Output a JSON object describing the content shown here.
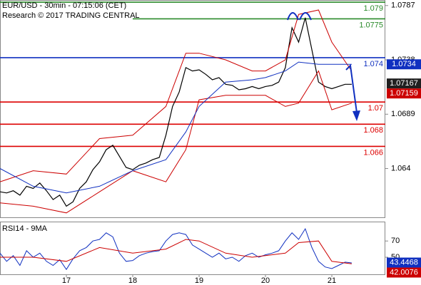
{
  "chart_data": [
    {
      "type": "line",
      "title": "EUR/USD - 30min - 07:15:06 (CET)",
      "subtitle": "Research © 2017 TRADING CENTRAL",
      "xlim": [
        16,
        21.806
      ],
      "ylim": [
        1.0596,
        1.0792
      ],
      "yticks": [
        1.0787,
        1.0738,
        1.0689,
        1.064
      ],
      "series": [
        {
          "color": "#000000",
          "width": 1.2,
          "x": [
            16.0,
            16.1,
            16.2,
            16.3,
            16.4,
            16.5,
            16.6,
            16.7,
            16.8,
            16.9,
            17.0,
            17.1,
            17.2,
            17.3,
            17.4,
            17.5,
            17.6,
            17.7,
            17.8,
            17.9,
            18.0,
            18.1,
            18.2,
            18.3,
            18.4,
            18.5,
            18.6,
            18.7,
            18.8,
            18.9,
            19.0,
            19.1,
            19.2,
            19.3,
            19.4,
            19.5,
            19.6,
            19.7,
            19.8,
            19.9,
            20.0,
            20.1,
            20.2,
            20.3,
            20.4,
            20.5,
            20.6,
            20.7,
            20.8,
            20.9,
            21.0,
            21.1,
            21.2,
            21.3
          ],
          "values": [
            1.0619,
            1.0618,
            1.062,
            1.0616,
            1.0624,
            1.0622,
            1.0627,
            1.062,
            1.0612,
            1.0616,
            1.0606,
            1.061,
            1.0622,
            1.0628,
            1.0639,
            1.0646,
            1.0657,
            1.0661,
            1.0651,
            1.0641,
            1.0639,
            1.0643,
            1.0645,
            1.0648,
            1.065,
            1.067,
            1.0696,
            1.0709,
            1.0731,
            1.0728,
            1.0729,
            1.0725,
            1.072,
            1.0722,
            1.0716,
            1.0715,
            1.0711,
            1.0712,
            1.0714,
            1.0712,
            1.0714,
            1.0715,
            1.0718,
            1.0731,
            1.0767,
            1.0754,
            1.0776,
            1.0747,
            1.0718,
            1.0714,
            1.0712,
            1.0714,
            1.0716,
            1.0716
          ]
        },
        {
          "color": "#cc0000",
          "width": 1,
          "x": [
            16.0,
            16.5,
            17.0,
            17.5,
            18.0,
            18.5,
            18.8,
            19.0,
            19.4,
            19.8,
            20.0,
            20.3,
            20.5,
            20.8,
            21.0,
            21.3
          ],
          "values": [
            1.0628,
            1.0638,
            1.0635,
            1.0667,
            1.067,
            1.0696,
            1.0744,
            1.0744,
            1.0738,
            1.0728,
            1.0728,
            1.0738,
            1.0779,
            1.0783,
            1.0754,
            1.0728
          ]
        },
        {
          "color": "#cc0000",
          "width": 1,
          "x": [
            16.0,
            16.5,
            17.0,
            17.5,
            18.0,
            18.5,
            18.8,
            19.0,
            19.4,
            19.8,
            20.0,
            20.3,
            20.5,
            20.8,
            21.0,
            21.3
          ],
          "values": [
            1.0609,
            1.0606,
            1.06,
            1.0619,
            1.0638,
            1.0628,
            1.0657,
            1.0702,
            1.0706,
            1.0706,
            1.0706,
            1.0696,
            1.0699,
            1.0728,
            1.0693,
            1.0699
          ]
        },
        {
          "color": "#1030c0",
          "width": 1,
          "x": [
            16.0,
            16.5,
            17.0,
            17.5,
            18.0,
            18.5,
            18.8,
            19.0,
            19.4,
            19.8,
            20.0,
            20.3,
            20.5,
            20.8,
            21.0,
            21.3
          ],
          "values": [
            1.064,
            1.0624,
            1.0618,
            1.0624,
            1.0638,
            1.0648,
            1.0673,
            1.0696,
            1.0718,
            1.072,
            1.0722,
            1.0728,
            1.0736,
            1.0734,
            1.0734,
            1.0734
          ]
        }
      ],
      "levels": [
        {
          "value": 1.079,
          "label": "1.079",
          "color": "#2a8a2a"
        },
        {
          "value": 1.0775,
          "label": "1.0775",
          "color": "#2a8a2a",
          "x_start": 18
        },
        {
          "value": 1.074,
          "label": "1.074",
          "color": "#1030c0"
        },
        {
          "value": 1.07,
          "label": "1.07",
          "color": "#dd0000"
        },
        {
          "value": 1.068,
          "label": "1.068",
          "color": "#dd0000"
        },
        {
          "value": 1.066,
          "label": "1.066",
          "color": "#dd0000"
        }
      ],
      "price_labels": [
        {
          "value": 1.0734,
          "label": "1.0734",
          "color": "#1030c0"
        },
        {
          "value": 1.07167,
          "label": "1.07167",
          "color": "#202020"
        },
        {
          "value": 1.07159,
          "label": "1.07159",
          "color": "#cc0000"
        }
      ]
    },
    {
      "type": "line",
      "title": "RSI14 - 9MA",
      "xlim": [
        16,
        21.806
      ],
      "ylim": [
        29,
        93
      ],
      "yticks": [
        50,
        70
      ],
      "xticks": [
        17,
        18,
        19,
        20,
        21
      ],
      "series": [
        {
          "color": "#1030c0",
          "width": 1,
          "x": [
            16.0,
            16.1,
            16.2,
            16.3,
            16.4,
            16.5,
            16.6,
            16.7,
            16.8,
            16.9,
            17.0,
            17.1,
            17.2,
            17.3,
            17.4,
            17.5,
            17.6,
            17.7,
            17.8,
            17.9,
            18.0,
            18.1,
            18.2,
            18.3,
            18.4,
            18.5,
            18.6,
            18.7,
            18.8,
            18.9,
            19.0,
            19.1,
            19.2,
            19.3,
            19.4,
            19.5,
            19.6,
            19.7,
            19.8,
            19.9,
            20.0,
            20.1,
            20.2,
            20.3,
            20.4,
            20.5,
            20.6,
            20.7,
            20.8,
            20.9,
            21.0,
            21.1,
            21.2,
            21.3
          ],
          "values": [
            55,
            45,
            52,
            40,
            58,
            50,
            55,
            45,
            40,
            47,
            35,
            48,
            58,
            62,
            70,
            72,
            80,
            75,
            55,
            45,
            46,
            52,
            55,
            57,
            58,
            70,
            78,
            80,
            78,
            65,
            60,
            55,
            50,
            55,
            48,
            50,
            45,
            52,
            55,
            50,
            53,
            55,
            58,
            70,
            80,
            72,
            85,
            62,
            45,
            38,
            36,
            40,
            44,
            43
          ]
        },
        {
          "color": "#cc0000",
          "width": 1,
          "x": [
            16.0,
            16.5,
            17.0,
            17.5,
            18.0,
            18.5,
            18.8,
            19.0,
            19.4,
            19.8,
            20.0,
            20.3,
            20.5,
            20.8,
            21.0,
            21.3
          ],
          "values": [
            50,
            50,
            45,
            62,
            55,
            60,
            72,
            70,
            55,
            50,
            52,
            55,
            68,
            70,
            45,
            42
          ]
        }
      ],
      "price_labels": [
        {
          "value": 43.4468,
          "label": "43.4468",
          "color": "#1030c0"
        },
        {
          "value": 42.0076,
          "label": "42.0076",
          "color": "#cc0000"
        }
      ]
    }
  ]
}
